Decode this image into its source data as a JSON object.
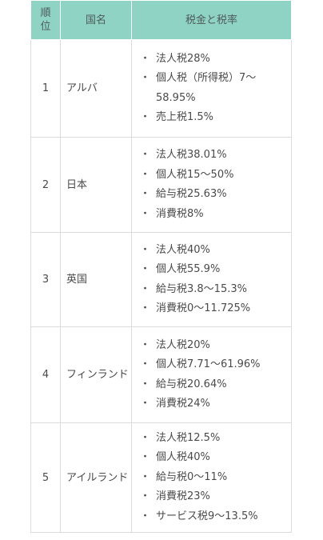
{
  "table": {
    "headers": {
      "rank": "順位",
      "country": "国名",
      "tax": "税金と税率"
    },
    "bullet": "・",
    "rows": [
      {
        "rank": "1",
        "country": "アルバ",
        "highlight": false,
        "taxes": [
          "法人税28%",
          "個人税（所得税）7〜58.95%",
          "売上税1.5%"
        ]
      },
      {
        "rank": "2",
        "country": "日本",
        "highlight": true,
        "taxes": [
          "法人税38.01%",
          "個人税15〜50%",
          "給与税25.63%",
          "消費税8%"
        ]
      },
      {
        "rank": "3",
        "country": "英国",
        "highlight": false,
        "taxes": [
          "法人税40%",
          "個人税55.9%",
          "給与税3.8〜15.3%",
          "消費税0〜11.725%"
        ]
      },
      {
        "rank": "4",
        "country": "フィンランド",
        "highlight": false,
        "taxes": [
          "法人税20%",
          "個人税7.71〜61.96%",
          "給与税20.64%",
          "消費税24%"
        ]
      },
      {
        "rank": "5",
        "country": "アイルランド",
        "highlight": false,
        "taxes": [
          "法人税12.5%",
          "個人税40%",
          "給与税0〜11%",
          "消費税23%",
          "サービス税9〜13.5%"
        ]
      }
    ],
    "colors": {
      "header_bg": "#8fd3c4",
      "highlight": "#e03c4b",
      "text": "#4a4a4a"
    }
  }
}
